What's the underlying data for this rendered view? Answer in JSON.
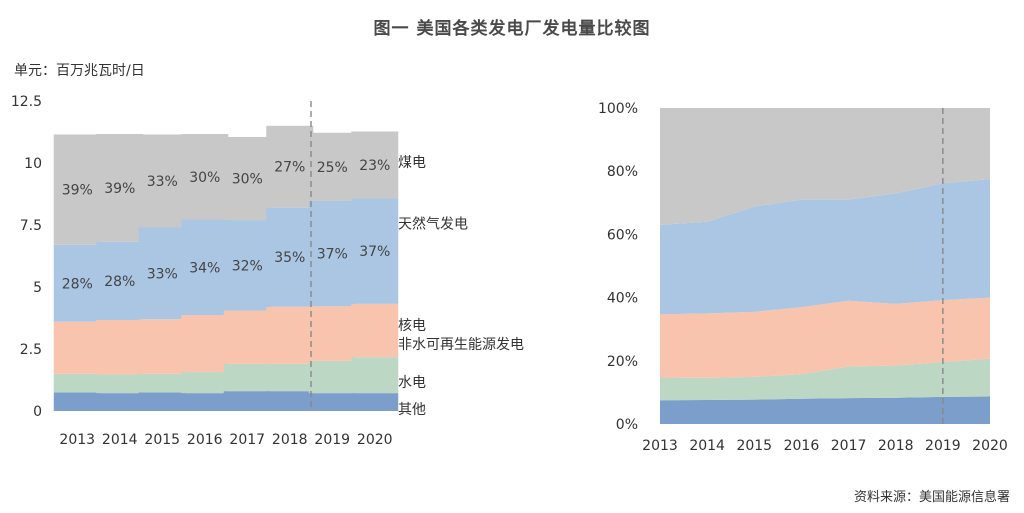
{
  "title": "图一  美国各类发电厂发电量比较图",
  "unit": "单元：百万兆瓦时/日",
  "source": "资料来源：美国能源信息署",
  "colors": {
    "其他": "#7b9fca",
    "水电": "#bcd7c4",
    "非水可再生能源发电": "#f8c4ad",
    "核电": "#f8c4ad",
    "天然气发电": "#aac6e3",
    "煤电": "#c8c8c8",
    "divider": "#888888"
  },
  "chart_data": [
    {
      "type": "bar",
      "stacked": true,
      "categories": [
        "2013",
        "2014",
        "2015",
        "2016",
        "2017",
        "2018",
        "2019",
        "2020"
      ],
      "ylim": [
        0,
        12.5
      ],
      "yticks": [
        "0",
        "2.5",
        "5",
        "7.5",
        "10",
        "12.5"
      ],
      "ylabel": "单元：百万兆瓦时/日",
      "divider_after": "2018",
      "series": [
        {
          "name": "其他",
          "values": [
            0.75,
            0.72,
            0.75,
            0.72,
            0.8,
            0.8,
            0.72,
            0.72
          ]
        },
        {
          "name": "水电",
          "values": [
            0.75,
            0.75,
            0.75,
            0.85,
            1.1,
            1.1,
            1.3,
            1.45
          ]
        },
        {
          "name": "核电",
          "values": [
            2.1,
            2.2,
            2.2,
            2.3,
            2.15,
            2.3,
            2.2,
            2.15
          ]
        },
        {
          "name": "天然气发电",
          "values": [
            3.1,
            3.15,
            3.7,
            3.85,
            3.65,
            4.0,
            4.25,
            4.25
          ]
        },
        {
          "name": "煤电",
          "values": [
            4.45,
            4.35,
            3.75,
            3.45,
            3.35,
            3.3,
            2.75,
            2.7
          ]
        }
      ],
      "labels": {
        "煤电": [
          "39%",
          "39%",
          "33%",
          "30%",
          "30%",
          "27%",
          "25%",
          "23%"
        ],
        "天然气发电": [
          "28%",
          "28%",
          "33%",
          "34%",
          "32%",
          "35%",
          "37%",
          "37%"
        ]
      },
      "legend": [
        "煤电",
        "天然气发电",
        "核电",
        "非水可再生能源发电",
        "水电",
        "其他"
      ]
    },
    {
      "type": "area",
      "stacked": true,
      "x": [
        "2013",
        "2014",
        "2015",
        "2016",
        "2017",
        "2018",
        "2019",
        "2020"
      ],
      "ylim": [
        0,
        100
      ],
      "yticks": [
        "0%",
        "20%",
        "40%",
        "60%",
        "80%",
        "100%"
      ],
      "divider_after": "2019",
      "series": [
        {
          "name": "其他",
          "values": [
            7.5,
            7.6,
            7.7,
            8.0,
            8.2,
            8.3,
            8.6,
            8.7
          ]
        },
        {
          "name": "水电",
          "values": [
            7.2,
            7.0,
            7.2,
            7.8,
            10.0,
            10.2,
            11.0,
            12.0
          ]
        },
        {
          "name": "核电",
          "values": [
            20.0,
            20.4,
            20.6,
            21.2,
            20.8,
            19.5,
            19.6,
            19.3
          ]
        },
        {
          "name": "天然气发电",
          "values": [
            28.3,
            29.0,
            33.3,
            34.0,
            32.0,
            35.0,
            37.0,
            37.5
          ]
        },
        {
          "name": "煤电",
          "values": [
            37.0,
            36.0,
            31.2,
            29.0,
            29.0,
            27.0,
            23.8,
            22.5
          ]
        }
      ]
    }
  ]
}
